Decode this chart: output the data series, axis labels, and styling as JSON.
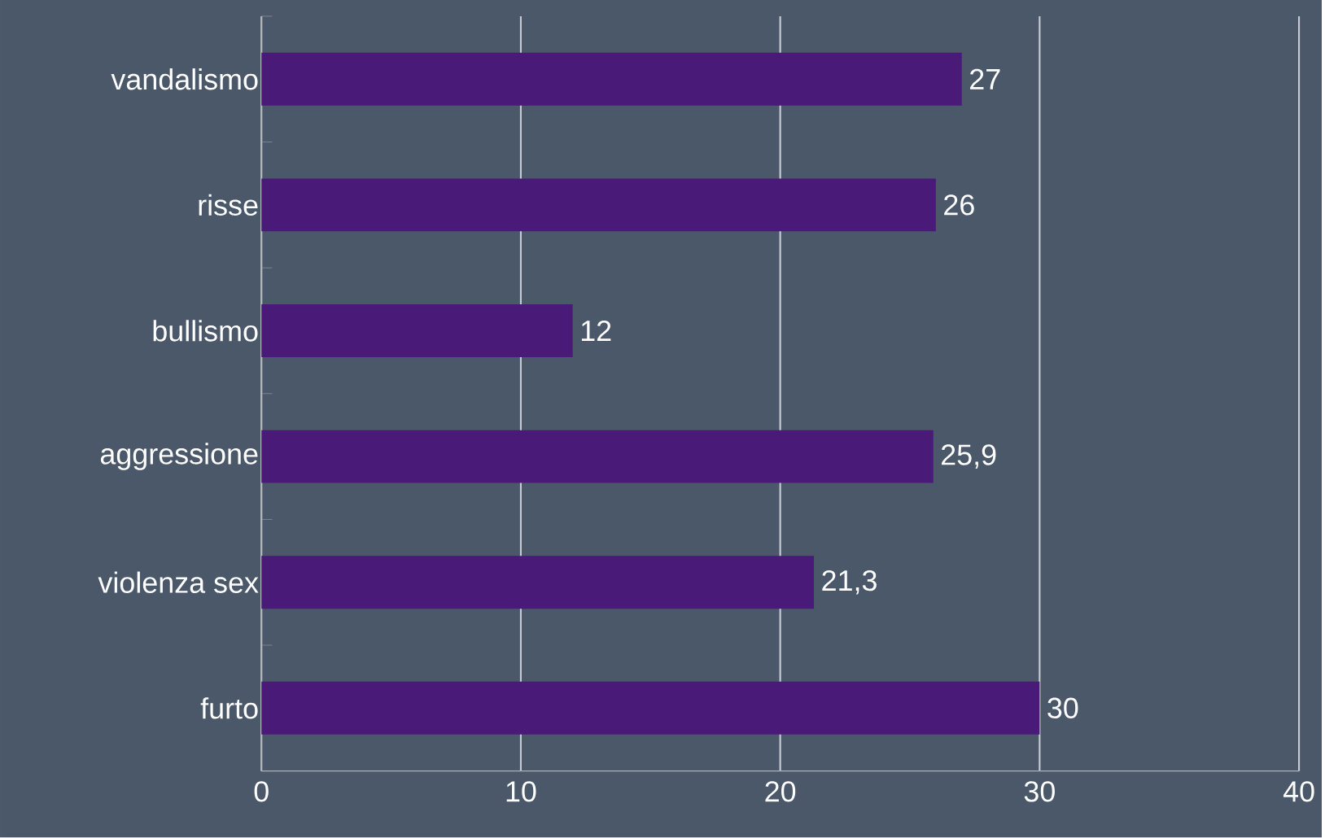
{
  "chart_data": {
    "type": "bar",
    "orientation": "horizontal",
    "categories": [
      "vandalismo",
      "risse",
      "bullismo",
      "aggressione",
      "violenza sex",
      "furto"
    ],
    "values": [
      27,
      26,
      12,
      25.9,
      21.3,
      30
    ],
    "value_labels": [
      "27",
      "26",
      "12",
      "25,9",
      "21,3",
      "30"
    ],
    "color": "#4a1a78",
    "xlim": [
      0,
      40
    ],
    "xticks": [
      0,
      10,
      20,
      30,
      40
    ],
    "grid": "x"
  }
}
